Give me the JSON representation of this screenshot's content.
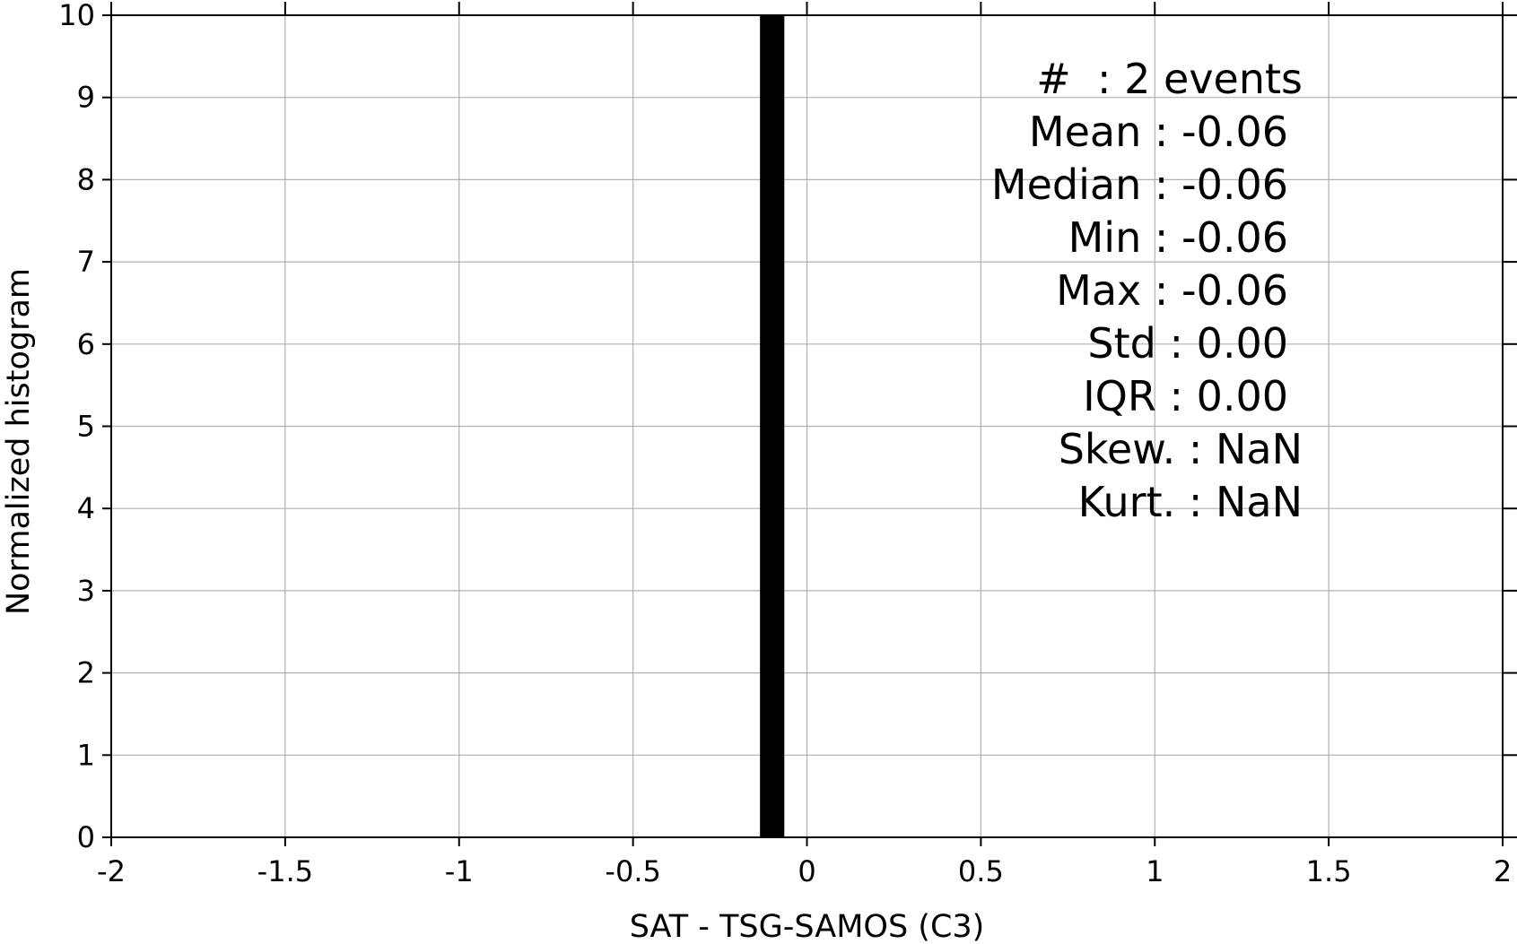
{
  "chart_data": {
    "type": "bar",
    "xlabel": "SAT - TSG-SAMOS (C3)",
    "ylabel": "Normalized histogram",
    "xlim": [
      -2,
      2
    ],
    "ylim": [
      0,
      10
    ],
    "x_ticks": [
      "-2",
      "-1.5",
      "-1",
      "-0.5",
      "0",
      "0.5",
      "1",
      "1.5",
      "2"
    ],
    "y_ticks": [
      "0",
      "1",
      "2",
      "3",
      "4",
      "5",
      "6",
      "7",
      "8",
      "9",
      "10"
    ],
    "grid": true,
    "series": [
      {
        "bins": [
          {
            "x_start": -0.135,
            "x_end": -0.065,
            "value": 10
          }
        ],
        "color": "#000000"
      }
    ],
    "annotations": [
      {
        "lines": [
          "#  : 2 events",
          "Mean : -0.06",
          "Median : -0.06",
          "Min : -0.06",
          "Max : -0.06",
          "Std : 0.00",
          "IQR : 0.00",
          "Skew. : NaN",
          "Kurt. : NaN"
        ]
      }
    ]
  }
}
